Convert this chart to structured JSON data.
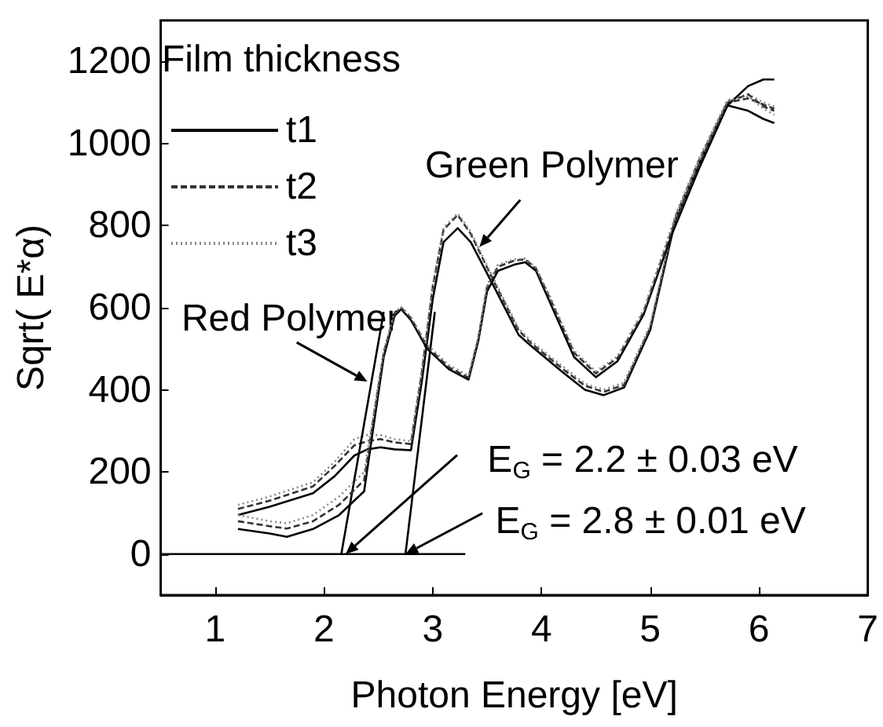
{
  "chart_data": {
    "type": "line",
    "xlabel": "Photon Energy [eV]",
    "ylabel": "Sqrt( E*α)",
    "legend_title": "Film thickness",
    "legend": "top left",
    "grid": false,
    "marker": "none",
    "xlim": [
      0.5,
      7
    ],
    "xticks": [
      1,
      2,
      3,
      4,
      5,
      6,
      7
    ],
    "ylim": [
      -100,
      1300
    ],
    "yticks": [
      0,
      200,
      400,
      600,
      800,
      1000,
      1200
    ],
    "series": [
      {
        "name": "t1",
        "color": "#000000",
        "line_style": "solid",
        "x": [
          1.21,
          1.5,
          1.66,
          1.9,
          2.14,
          2.37,
          2.45,
          2.55,
          2.65,
          2.71,
          2.8,
          2.95,
          3.15,
          3.33,
          3.42,
          3.5,
          3.6,
          3.75,
          3.85,
          3.95,
          4.1,
          4.3,
          4.5,
          4.7,
          4.94,
          5.2,
          5.45,
          5.71,
          5.9,
          6.04,
          6.14
        ],
        "values": [
          61,
          50,
          42,
          61,
          95,
          153,
          300,
          480,
          580,
          597,
          570,
          500,
          450,
          425,
          520,
          640,
          690,
          705,
          711,
          690,
          600,
          480,
          431,
          470,
          584,
          780,
          940,
          1093,
          1140,
          1156,
          1156
        ]
      },
      {
        "name": "t2",
        "color": "#333333",
        "line_style": "dashed",
        "x": [
          1.21,
          1.5,
          1.66,
          1.9,
          2.14,
          2.37,
          2.45,
          2.55,
          2.65,
          2.71,
          2.8,
          2.95,
          3.15,
          3.33,
          3.42,
          3.5,
          3.6,
          3.75,
          3.85,
          3.95,
          4.1,
          4.3,
          4.5,
          4.7,
          4.94,
          5.2,
          5.45,
          5.71,
          5.9,
          6.04,
          6.14
        ],
        "values": [
          80,
          68,
          62,
          80,
          120,
          180,
          320,
          490,
          585,
          600,
          575,
          505,
          455,
          430,
          525,
          650,
          700,
          715,
          718,
          695,
          610,
          490,
          440,
          478,
          590,
          790,
          950,
          1100,
          1120,
          1090,
          1080
        ]
      },
      {
        "name": "t3",
        "color": "#888888",
        "line_style": "dotted",
        "x": [
          1.21,
          1.5,
          1.66,
          1.9,
          2.14,
          2.37,
          2.45,
          2.55,
          2.65,
          2.71,
          2.8,
          2.95,
          3.15,
          3.33,
          3.42,
          3.5,
          3.6,
          3.75,
          3.85,
          3.95,
          4.1,
          4.3,
          4.5,
          4.7,
          4.94,
          5.2,
          5.45,
          5.71,
          5.9,
          6.04,
          6.14
        ],
        "values": [
          95,
          80,
          75,
          95,
          140,
          200,
          330,
          495,
          590,
          602,
          578,
          510,
          460,
          435,
          530,
          655,
          705,
          718,
          720,
          698,
          615,
          495,
          445,
          482,
          595,
          800,
          960,
          1105,
          1115,
          1085,
          1070
        ]
      },
      {
        "color": "#000000",
        "line_style": "solid",
        "x": [
          1.21,
          1.5,
          1.9,
          2.1,
          2.28,
          2.4,
          2.52,
          2.65,
          2.8,
          2.9,
          3.0,
          3.1,
          3.23,
          3.35,
          3.57,
          3.79,
          3.9,
          4.19,
          4.4,
          4.57,
          4.76,
          5.0,
          5.23,
          5.45,
          5.71,
          5.9,
          6.04,
          6.14
        ],
        "values": [
          95,
          115,
          148,
          190,
          240,
          255,
          260,
          255,
          253,
          420,
          620,
          760,
          794,
          760,
          648,
          534,
          508,
          444,
          400,
          387,
          406,
          546,
          813,
          950,
          1093,
          1080,
          1060,
          1050
        ]
      },
      {
        "color": "#333333",
        "line_style": "dashed",
        "x": [
          1.21,
          1.5,
          1.9,
          2.1,
          2.28,
          2.4,
          2.52,
          2.65,
          2.8,
          2.9,
          3.0,
          3.1,
          3.23,
          3.35,
          3.57,
          3.79,
          3.9,
          4.19,
          4.4,
          4.57,
          4.76,
          5.0,
          5.23,
          5.45,
          5.71,
          5.9,
          6.04,
          6.14
        ],
        "values": [
          110,
          130,
          165,
          215,
          265,
          275,
          280,
          272,
          268,
          440,
          650,
          790,
          826,
          780,
          660,
          545,
          515,
          452,
          410,
          395,
          412,
          552,
          820,
          960,
          1100,
          1110,
          1095,
          1085
        ]
      },
      {
        "color": "#888888",
        "line_style": "dotted",
        "x": [
          1.21,
          1.5,
          1.9,
          2.1,
          2.28,
          2.4,
          2.52,
          2.65,
          2.8,
          2.9,
          3.0,
          3.1,
          3.23,
          3.35,
          3.57,
          3.79,
          3.9,
          4.19,
          4.4,
          4.57,
          4.76,
          5.0,
          5.23,
          5.45,
          5.71,
          5.9,
          6.04,
          6.14
        ],
        "values": [
          120,
          140,
          175,
          225,
          280,
          290,
          290,
          280,
          275,
          450,
          655,
          795,
          830,
          785,
          665,
          550,
          520,
          458,
          415,
          400,
          418,
          558,
          825,
          965,
          1105,
          1120,
          1100,
          1090
        ]
      },
      {
        "color": "#000000",
        "line_style": "solid",
        "x": [
          2.16,
          2.55
        ],
        "values": [
          0,
          590
        ]
      },
      {
        "color": "#000000",
        "line_style": "solid",
        "x": [
          2.75,
          3.02
        ],
        "values": [
          0,
          590
        ]
      },
      {
        "color": "#000000",
        "line_style": "solid",
        "x": [
          0.5,
          3.3
        ],
        "values": [
          0,
          0
        ]
      }
    ],
    "annotations": [
      {
        "text": "Red Polymer",
        "x": 2.4,
        "y": 420
      },
      {
        "text": "Green Polymer",
        "x": 3.43,
        "y": 748
      },
      {
        "text": "E$_{G}$ = 2.2 ± 0.03 eV",
        "x": 2.2,
        "y": 0
      },
      {
        "text": "E$_{G}$ = 2.8 ± 0.01 eV",
        "x": 2.75,
        "y": 0
      }
    ]
  }
}
